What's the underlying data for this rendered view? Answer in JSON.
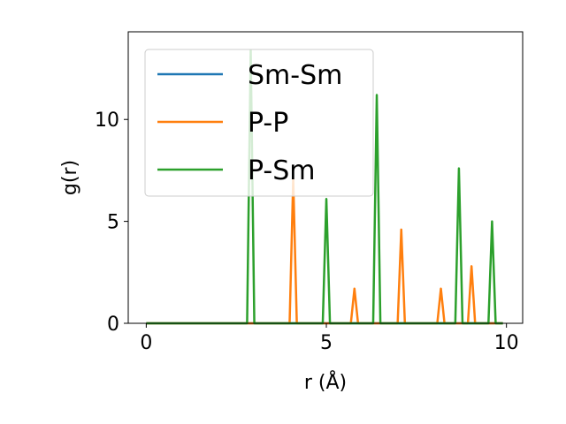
{
  "chart_data": {
    "type": "line",
    "title": "",
    "xlabel": "r (Å)",
    "ylabel": "g(r)",
    "xlim": [
      -0.5,
      10.45
    ],
    "ylim": [
      0,
      14.3
    ],
    "xticks": [
      0,
      5,
      10
    ],
    "yticks": [
      0,
      5,
      10
    ],
    "x_tick_labels": [
      "0",
      "5",
      "10"
    ],
    "y_tick_labels": [
      "0",
      "5",
      "10"
    ],
    "grid": false,
    "legend_position": "upper-left",
    "series": [
      {
        "name": "Sm-Sm",
        "color": "#1f77b4",
        "x": [
          0,
          9.9
        ],
        "y": [
          0,
          0
        ]
      },
      {
        "name": "P-P",
        "color": "#ff7f0e",
        "x": [
          0,
          3.98,
          4.08,
          4.18,
          5.68,
          5.78,
          5.88,
          6.98,
          7.08,
          7.18,
          8.08,
          8.18,
          8.28,
          8.93,
          9.03,
          9.13,
          9.9
        ],
        "y": [
          0,
          0,
          7.1,
          0,
          0,
          1.7,
          0,
          0,
          4.6,
          0,
          0,
          1.7,
          0,
          0,
          2.8,
          0,
          0
        ]
      },
      {
        "name": "P-Sm",
        "color": "#2ca02c",
        "x": [
          0,
          2.8,
          2.9,
          3.0,
          4.9,
          5.0,
          5.1,
          6.3,
          6.4,
          6.5,
          8.58,
          8.68,
          8.78,
          9.5,
          9.6,
          9.7,
          9.9
        ],
        "y": [
          0,
          0,
          13.4,
          0,
          0,
          6.1,
          0,
          0,
          11.2,
          0,
          0,
          7.6,
          0,
          0,
          5.0,
          0,
          0
        ]
      }
    ]
  }
}
